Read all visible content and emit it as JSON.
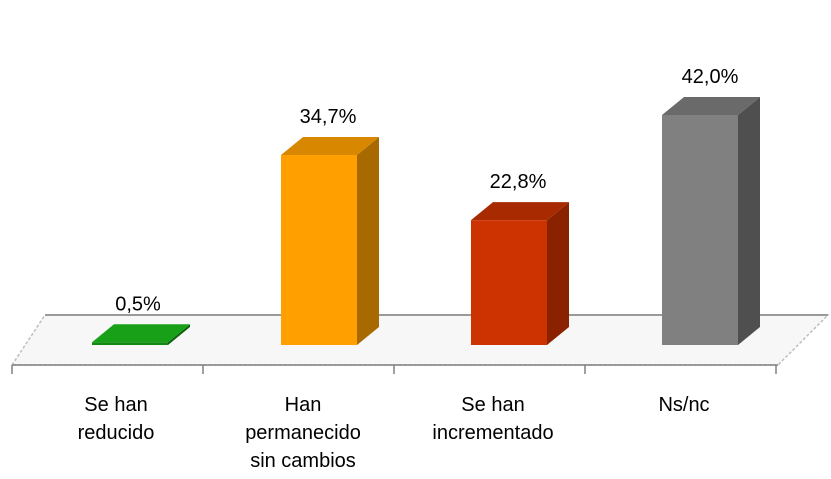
{
  "chart_data": {
    "type": "bar",
    "categories": [
      [
        "Se han",
        "reducido"
      ],
      [
        "Han",
        "permanecido",
        "sin cambios"
      ],
      [
        "Se han",
        "incrementado"
      ],
      [
        "Ns/nc"
      ]
    ],
    "values": [
      0.5,
      34.7,
      22.8,
      42.0
    ],
    "value_labels": [
      "0,5%",
      "34,7%",
      "22,8%",
      "42,0%"
    ],
    "title": "",
    "xlabel": "",
    "ylabel": "",
    "ylim": [
      0,
      42.0
    ],
    "grid": false,
    "legend": "none",
    "style": "3d-columns",
    "colors": [
      {
        "front": "#118811",
        "side": "#0c620c",
        "top": "#18a018"
      },
      {
        "front": "#ffa000",
        "side": "#a86a00",
        "top": "#d88800"
      },
      {
        "front": "#cc3300",
        "side": "#8a2200",
        "top": "#a82a00"
      },
      {
        "front": "#808080",
        "side": "#4f4f4f",
        "top": "#6a6a6a"
      }
    ]
  }
}
